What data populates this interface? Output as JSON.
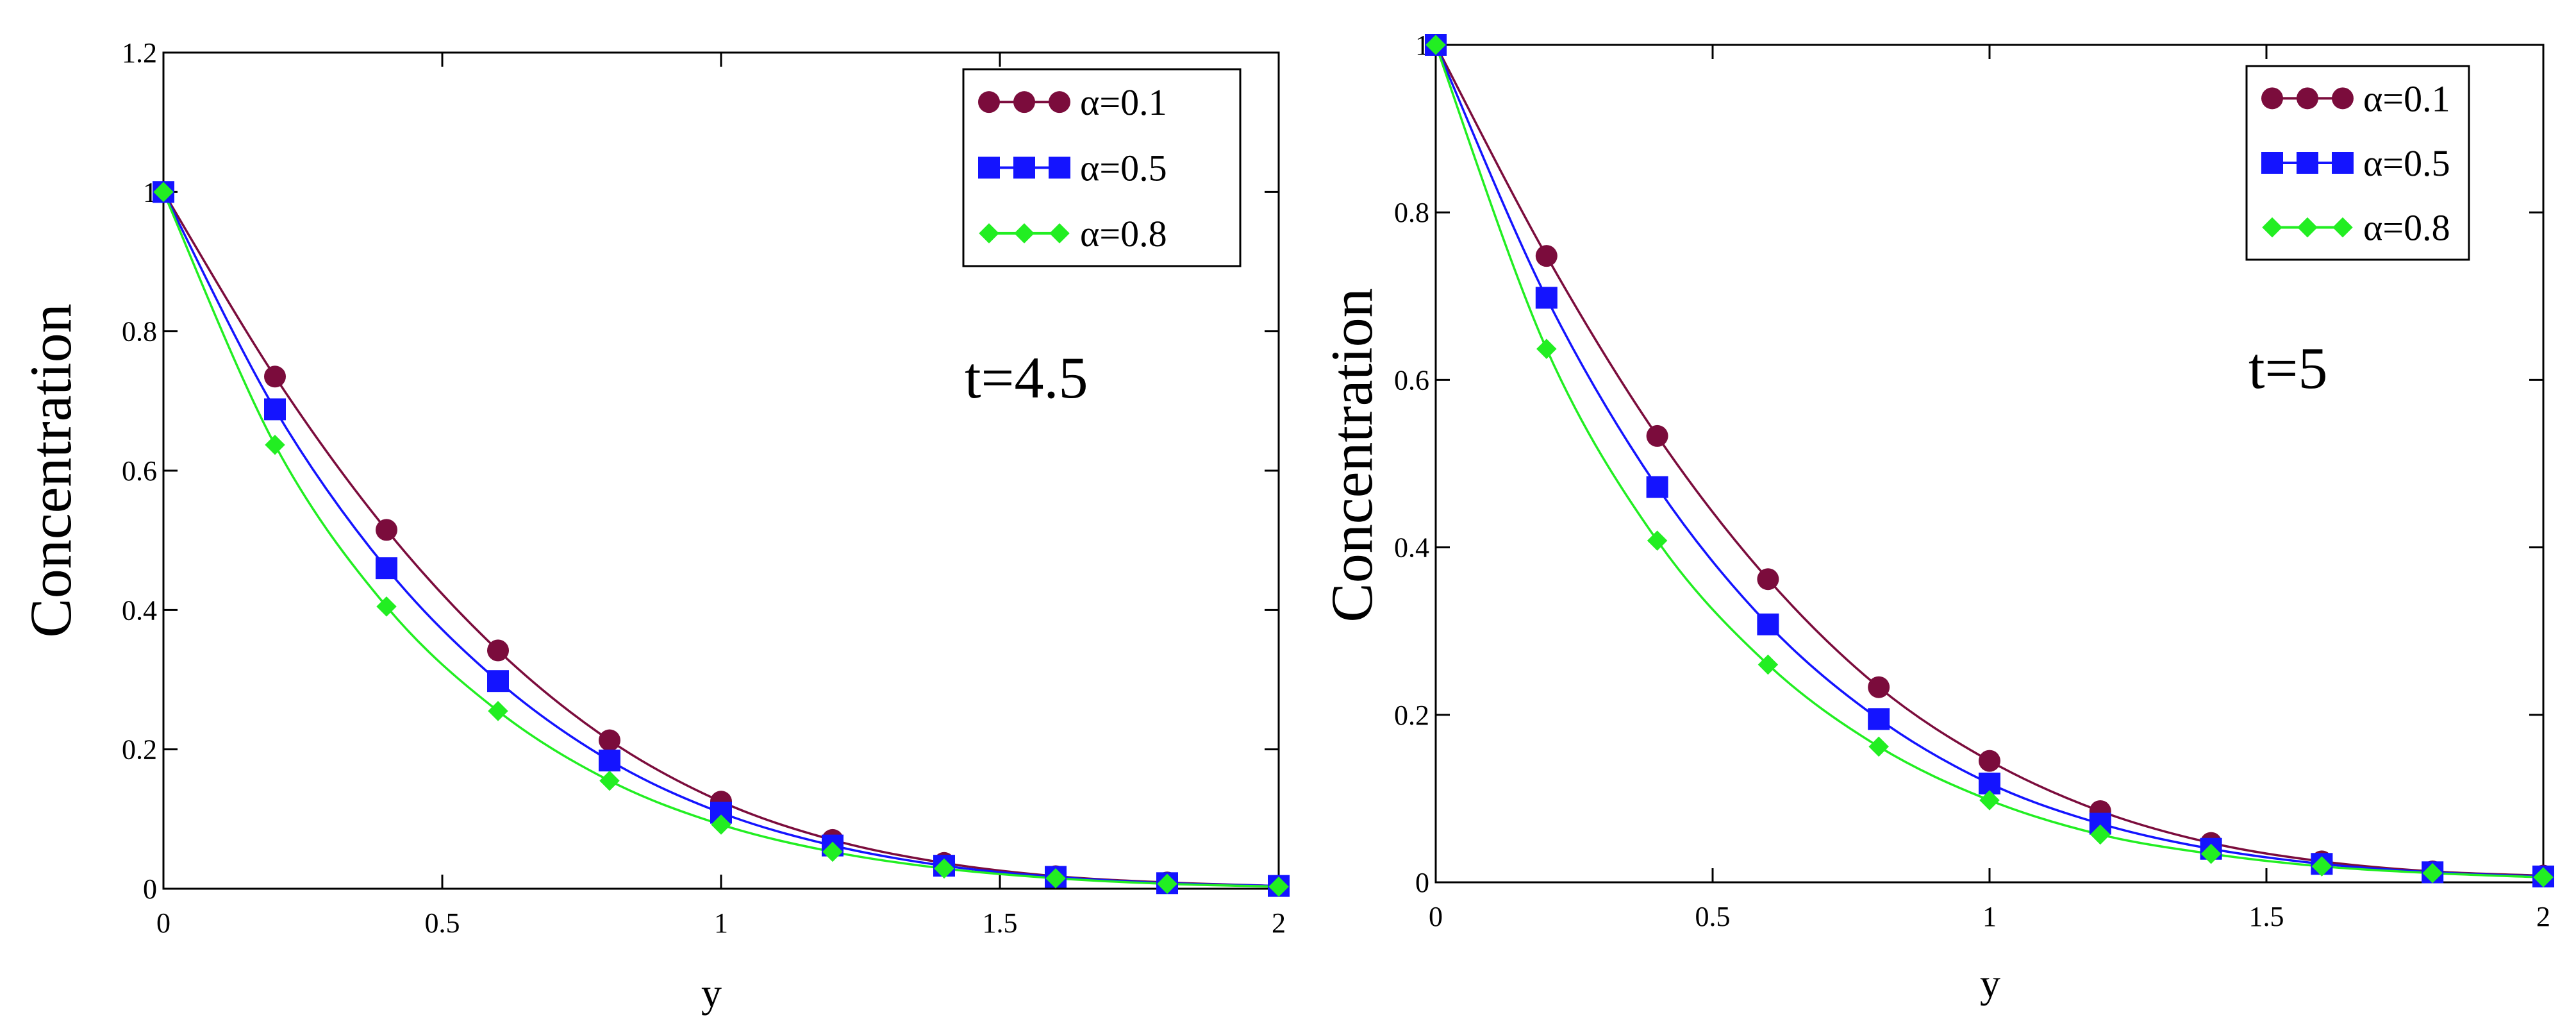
{
  "colors": {
    "alpha_0_1": "#7b0c3c",
    "alpha_0_5": "#1414ff",
    "alpha_0_8": "#22ee22"
  },
  "chart_data": [
    {
      "type": "line",
      "annotation": "t=4.5",
      "xlabel": "y",
      "ylabel": "Concentration",
      "xlim": [
        0,
        2
      ],
      "ylim": [
        0,
        1.2
      ],
      "xticks": [
        0,
        0.5,
        1,
        1.5,
        2
      ],
      "xtick_labels": [
        "0",
        "0.5",
        "1",
        "1.5",
        "2"
      ],
      "yticks": [
        0,
        0.2,
        0.4,
        0.6,
        0.8,
        1,
        1.2
      ],
      "ytick_labels": [
        "0",
        "0.2",
        "0.4",
        "0.6",
        "0.8",
        "1",
        "1.2"
      ],
      "legend_position": "top-right",
      "x": [
        0,
        0.2,
        0.4,
        0.6,
        0.8,
        1.0,
        1.2,
        1.4,
        1.6,
        1.8,
        2.0
      ],
      "series": [
        {
          "name": "α=0.1",
          "marker": "circle",
          "color_key": "alpha_0_1",
          "values": [
            1.0,
            0.735,
            0.515,
            0.342,
            0.213,
            0.125,
            0.07,
            0.037,
            0.018,
            0.009,
            0.004
          ]
        },
        {
          "name": "α=0.5",
          "marker": "square",
          "color_key": "alpha_0_5",
          "values": [
            1.0,
            0.688,
            0.46,
            0.298,
            0.184,
            0.109,
            0.062,
            0.033,
            0.017,
            0.008,
            0.004
          ]
        },
        {
          "name": "α=0.8",
          "marker": "diamond",
          "color_key": "alpha_0_8",
          "values": [
            1.0,
            0.637,
            0.405,
            0.255,
            0.155,
            0.092,
            0.053,
            0.029,
            0.015,
            0.007,
            0.003
          ]
        }
      ]
    },
    {
      "type": "line",
      "annotation": "t=5",
      "xlabel": "y",
      "ylabel": "Concentration",
      "xlim": [
        0,
        2
      ],
      "ylim": [
        0,
        1
      ],
      "xticks": [
        0,
        0.5,
        1,
        1.5,
        2
      ],
      "xtick_labels": [
        "0",
        "0.5",
        "1",
        "1.5",
        "2"
      ],
      "yticks": [
        0,
        0.2,
        0.4,
        0.6,
        0.8,
        1
      ],
      "ytick_labels": [
        "0",
        "0.2",
        "0.4",
        "0.6",
        "0.8",
        "1"
      ],
      "legend_position": "top-right",
      "x": [
        0,
        0.2,
        0.4,
        0.6,
        0.8,
        1.0,
        1.2,
        1.4,
        1.6,
        1.8,
        2.0
      ],
      "series": [
        {
          "name": "α=0.1",
          "marker": "circle",
          "color_key": "alpha_0_1",
          "values": [
            1.0,
            0.748,
            0.533,
            0.362,
            0.233,
            0.145,
            0.085,
            0.047,
            0.025,
            0.013,
            0.008
          ]
        },
        {
          "name": "α=0.5",
          "marker": "square",
          "color_key": "alpha_0_5",
          "values": [
            1.0,
            0.698,
            0.472,
            0.308,
            0.195,
            0.118,
            0.07,
            0.04,
            0.022,
            0.012,
            0.007
          ]
        },
        {
          "name": "α=0.8",
          "marker": "diamond",
          "color_key": "alpha_0_8",
          "values": [
            1.0,
            0.637,
            0.408,
            0.26,
            0.162,
            0.098,
            0.057,
            0.034,
            0.019,
            0.011,
            0.006
          ]
        }
      ]
    }
  ]
}
